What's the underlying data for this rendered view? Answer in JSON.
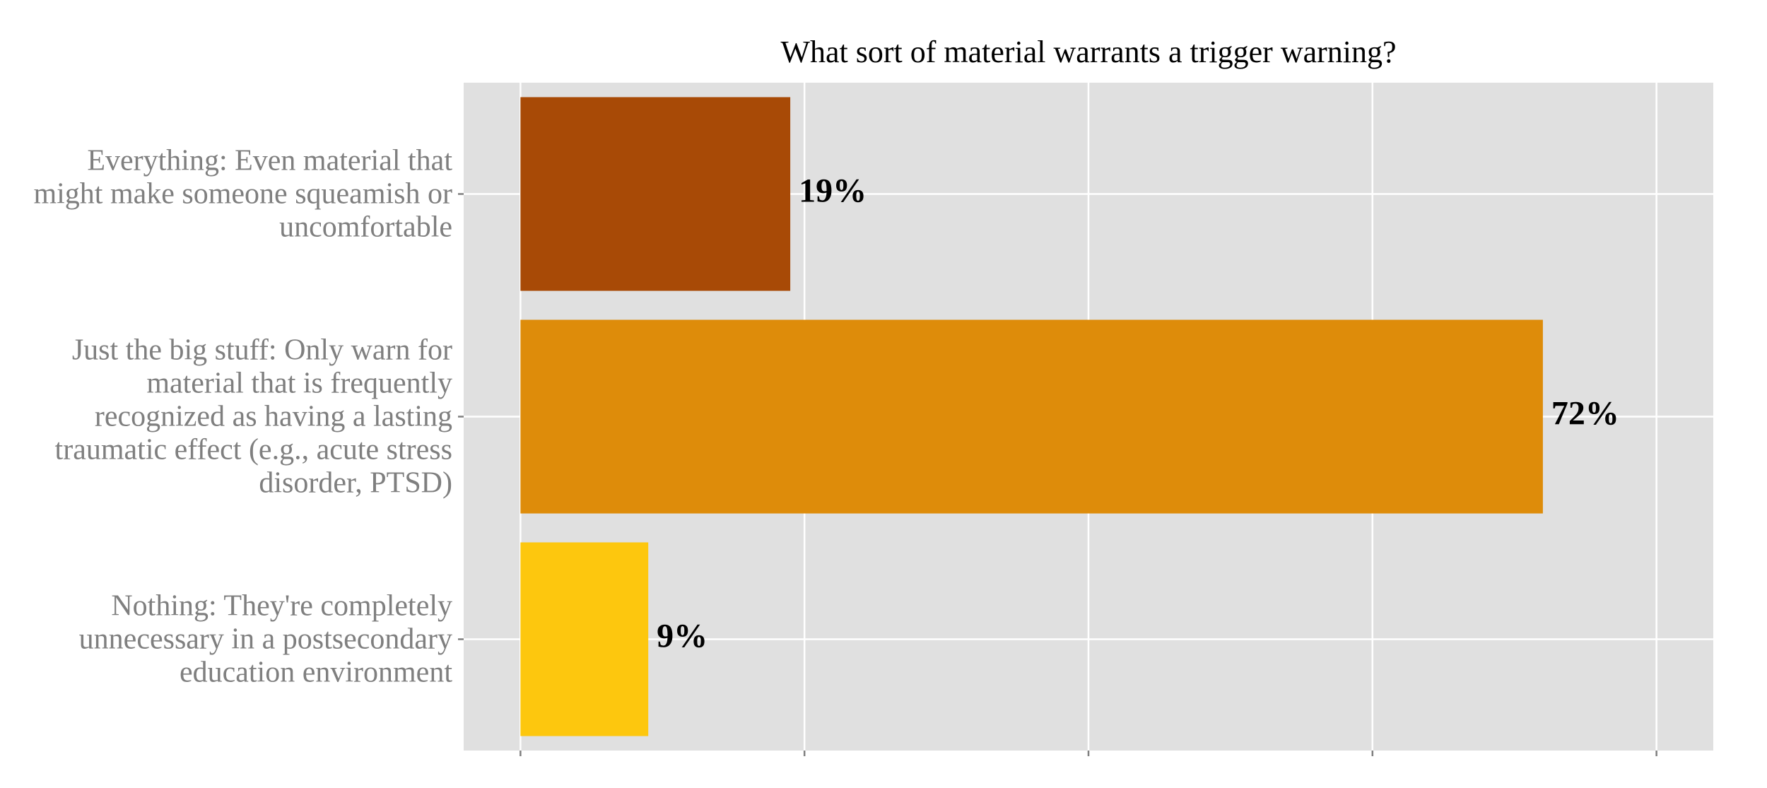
{
  "chart_data": {
    "type": "bar",
    "orientation": "horizontal",
    "title": "What sort of material warrants a trigger warning?",
    "categories": [
      "Everything: Even material that might make someone squeamish or uncomfortable",
      "Just the big stuff: Only warn for material that is frequently recognized as having a lasting traumatic effect (e.g., acute stress disorder, PTSD)",
      "Nothing: They're completely unnecessary in a postsecondary education environment"
    ],
    "values": [
      19,
      72,
      9
    ],
    "value_labels": [
      "19%",
      "72%",
      "9%"
    ],
    "colors": [
      "#a84a06",
      "#de8c0a",
      "#fdc70e"
    ],
    "xlim": [
      -4,
      84
    ],
    "xticks": [
      0,
      20,
      40,
      60,
      80
    ],
    "grid": true
  }
}
